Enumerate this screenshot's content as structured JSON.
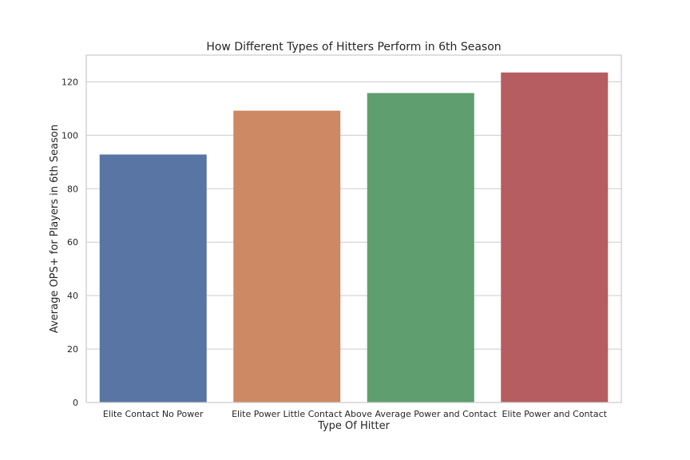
{
  "chart_data": {
    "type": "bar",
    "title": "How Different Types of Hitters Perform in 6th Season",
    "xlabel": "Type Of Hitter",
    "ylabel": "Average OPS+ for Players in 6th Season",
    "categories": [
      "Elite Contact No Power",
      "Elite Power Little Contact",
      "Above Average Power and Contact",
      "Elite Power and Contact"
    ],
    "values": [
      92.8,
      109.2,
      115.8,
      123.5
    ],
    "colors": [
      "#5975a4",
      "#cc8963",
      "#5f9e6e",
      "#b55d60"
    ],
    "ylim": [
      0,
      130
    ],
    "yticks": [
      0,
      20,
      40,
      60,
      80,
      100,
      120
    ],
    "grid": true,
    "legend": "none"
  }
}
